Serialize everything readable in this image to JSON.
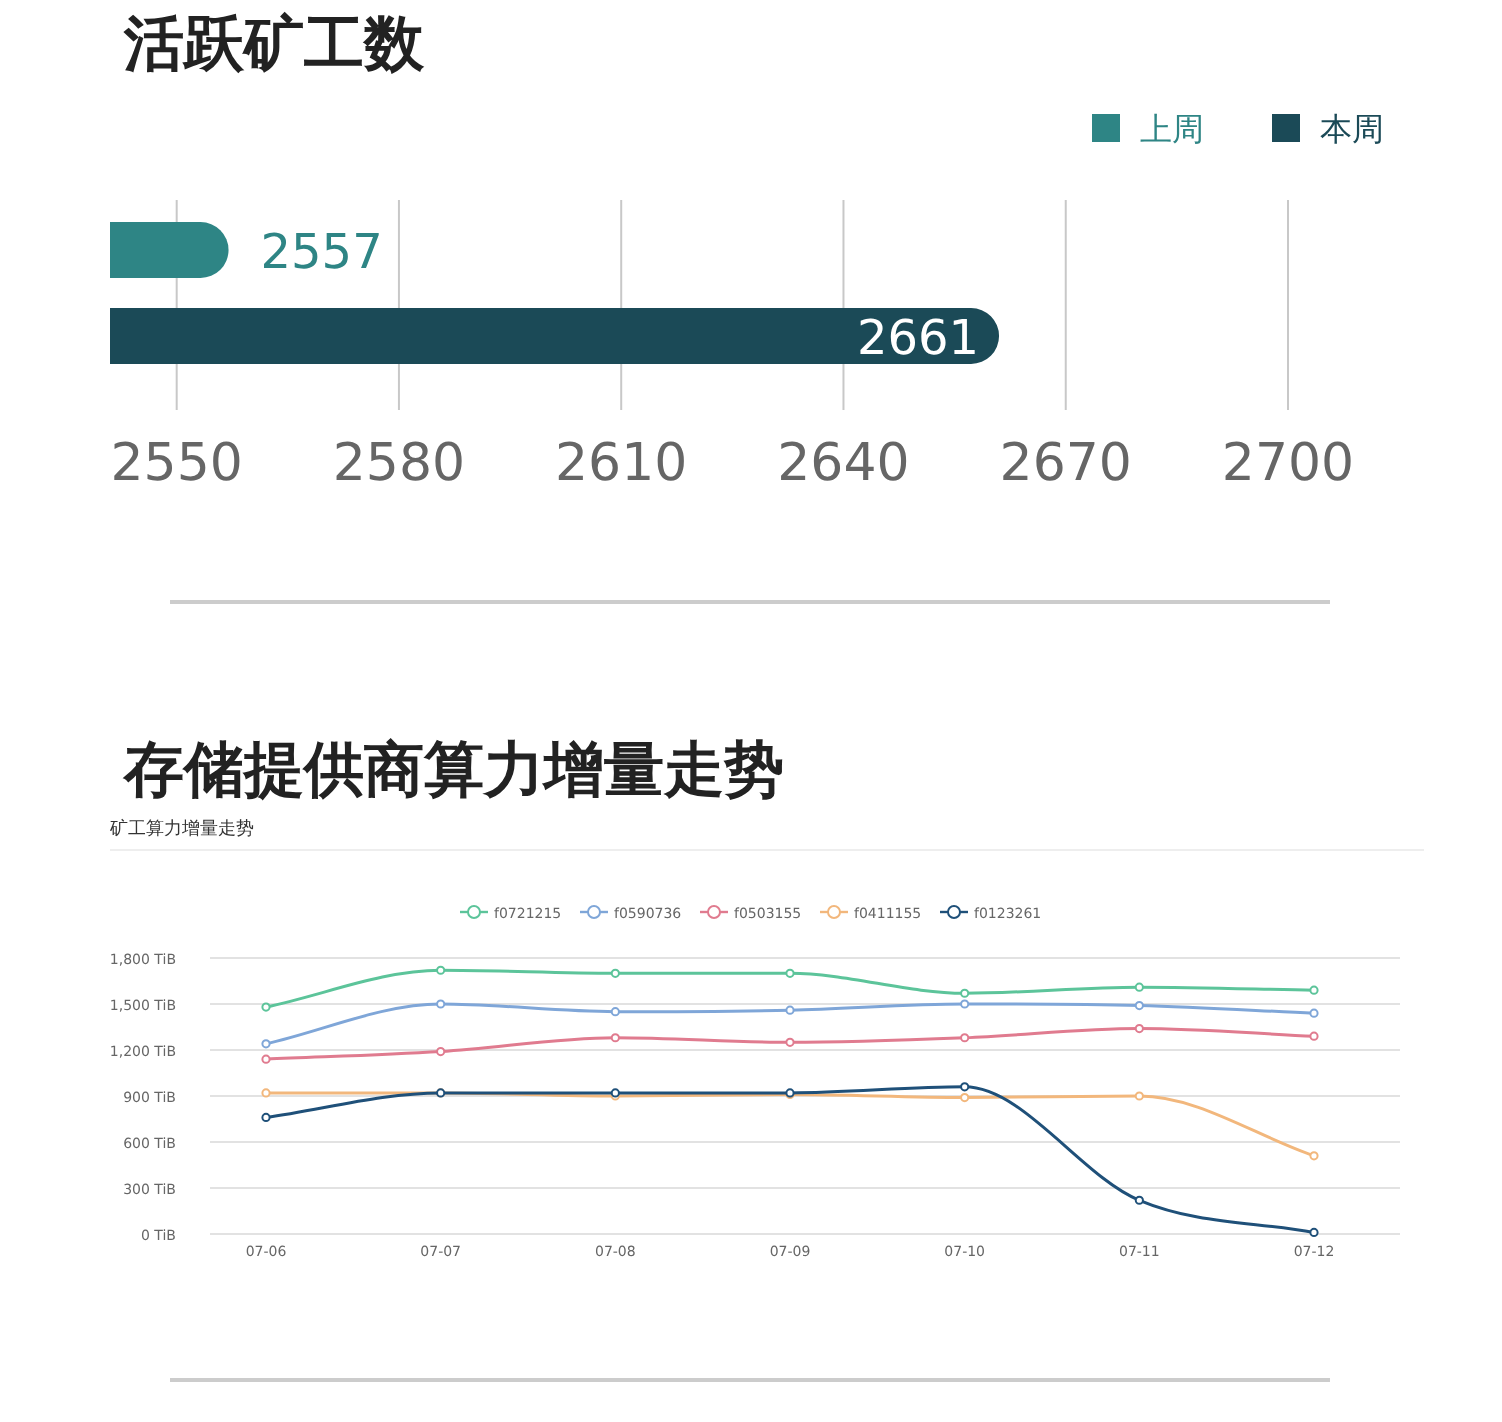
{
  "chart_data": [
    {
      "type": "bar",
      "orientation": "horizontal",
      "title": "活跃矿工数",
      "categories": [
        null
      ],
      "series": [
        {
          "name": "上周",
          "color": "#2e8585",
          "values": [
            2557
          ]
        },
        {
          "name": "本周",
          "color": "#1b4a57",
          "values": [
            2661
          ]
        }
      ],
      "data_labels": true,
      "xlim": [
        2541,
        2700
      ],
      "xticks": [
        2550,
        2580,
        2610,
        2640,
        2670,
        2700
      ],
      "grid": "x",
      "legend": "top right"
    },
    {
      "type": "line",
      "title": "存储提供商算力增量走势",
      "subtitle": "矿工算力增量走势",
      "categories": [
        "07-06",
        "07-07",
        "07-08",
        "07-09",
        "07-10",
        "07-11",
        "07-12"
      ],
      "series": [
        {
          "name": "f0721215",
          "color": "#5cc49a",
          "values": [
            1480,
            1720,
            1700,
            1700,
            1570,
            1610,
            1590
          ]
        },
        {
          "name": "f0590736",
          "color": "#7fa6d8",
          "values": [
            1240,
            1500,
            1450,
            1460,
            1500,
            1490,
            1440
          ]
        },
        {
          "name": "f0503155",
          "color": "#e07b8f",
          "values": [
            1140,
            1190,
            1280,
            1250,
            1280,
            1340,
            1290
          ]
        },
        {
          "name": "f0411155",
          "color": "#f2b77c",
          "values": [
            920,
            920,
            900,
            910,
            890,
            900,
            510
          ]
        },
        {
          "name": "f0123261",
          "color": "#1f5079",
          "values": [
            760,
            920,
            920,
            920,
            960,
            220,
            10
          ]
        }
      ],
      "ylim": [
        0,
        1800
      ],
      "yticks": [
        {
          "value": 0,
          "label": "0 TiB"
        },
        {
          "value": 300,
          "label": "300 TiB"
        },
        {
          "value": 600,
          "label": "600 TiB"
        },
        {
          "value": 900,
          "label": "900 TiB"
        },
        {
          "value": 1200,
          "label": "1,200 TiB"
        },
        {
          "value": 1500,
          "label": "1,500 TiB"
        },
        {
          "value": 1800,
          "label": "1,800 TiB"
        }
      ],
      "grid": "y",
      "legend": "top",
      "marker": "circle",
      "line_style": "solid"
    }
  ]
}
